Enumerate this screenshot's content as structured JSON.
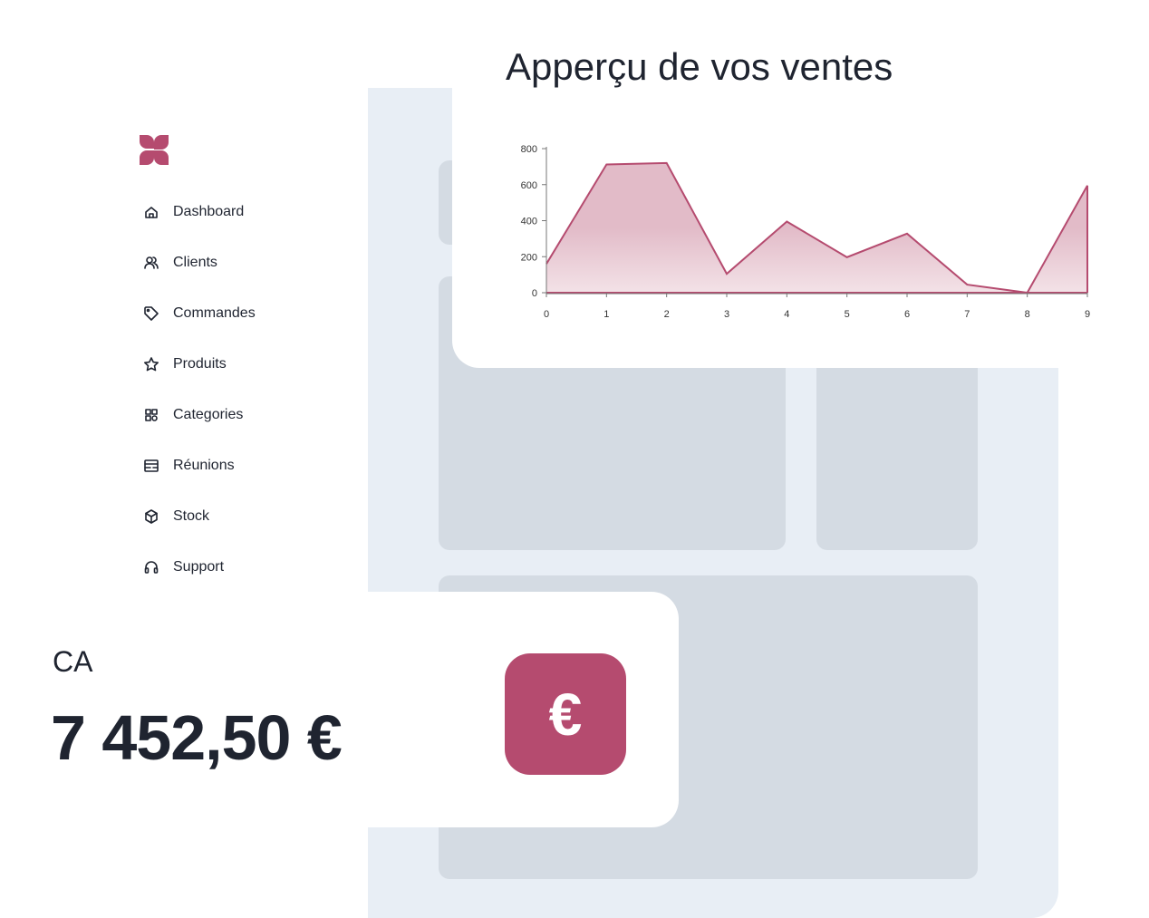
{
  "brand": {
    "accent": "#b54b6f",
    "logo_icon": "four-petal-logo"
  },
  "sidebar": {
    "items": [
      {
        "label": "Dashboard",
        "icon": "home-icon"
      },
      {
        "label": "Clients",
        "icon": "users-icon"
      },
      {
        "label": "Commandes",
        "icon": "tag-icon"
      },
      {
        "label": "Produits",
        "icon": "star-icon"
      },
      {
        "label": "Categories",
        "icon": "grid-icon"
      },
      {
        "label": "Réunions",
        "icon": "calendar-icon"
      },
      {
        "label": "Stock",
        "icon": "cube-icon"
      },
      {
        "label": "Support",
        "icon": "headset-icon"
      }
    ]
  },
  "sales": {
    "title": "Apperçu de vos ventes"
  },
  "chart_data": {
    "type": "area",
    "x": [
      0,
      1,
      2,
      3,
      4,
      5,
      6,
      7,
      8,
      9
    ],
    "values": [
      160,
      712,
      720,
      105,
      395,
      197,
      328,
      45,
      0,
      595
    ],
    "ylim": [
      0,
      800
    ],
    "yticks": [
      0,
      200,
      400,
      600,
      800
    ],
    "xticks": [
      0,
      1,
      2,
      3,
      4,
      5,
      6,
      7,
      8,
      9
    ],
    "color": "#b54b6f",
    "grid": false
  },
  "revenue": {
    "label": "CA",
    "value": "7 452,50 €",
    "icon": "euro-icon",
    "icon_glyph": "€"
  }
}
